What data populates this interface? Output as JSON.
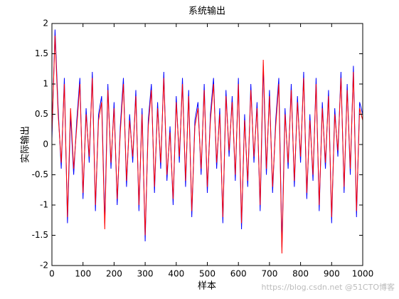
{
  "chart_data": {
    "type": "line",
    "title": "系统输出",
    "xlabel": "样本",
    "ylabel": "实际输出",
    "watermark": "https://blog.csdn.net @51CTO博客",
    "x": [
      0,
      10,
      20,
      30,
      40,
      50,
      60,
      70,
      80,
      90,
      100,
      110,
      120,
      130,
      140,
      150,
      160,
      170,
      180,
      190,
      200,
      210,
      220,
      230,
      240,
      250,
      260,
      270,
      280,
      290,
      300,
      310,
      320,
      330,
      340,
      350,
      360,
      370,
      380,
      390,
      400,
      410,
      420,
      430,
      440,
      450,
      460,
      470,
      480,
      490,
      500,
      510,
      520,
      530,
      540,
      550,
      560,
      570,
      580,
      590,
      600,
      610,
      620,
      630,
      640,
      650,
      660,
      670,
      680,
      690,
      700,
      710,
      720,
      730,
      740,
      750,
      760,
      770,
      780,
      790,
      800,
      810,
      820,
      830,
      840,
      850,
      860,
      870,
      880,
      890,
      900,
      910,
      920,
      930,
      940,
      950,
      960,
      970,
      980,
      990,
      1000
    ],
    "series": [
      {
        "color": "#0000ff",
        "values": [
          0.1,
          1.9,
          0.6,
          -0.4,
          1.1,
          -1.3,
          0.5,
          -0.5,
          0.4,
          1.1,
          -0.9,
          0.6,
          -0.3,
          1.2,
          -1.1,
          0.5,
          0.8,
          -1.3,
          1.0,
          -0.4,
          0.7,
          -1.0,
          0.3,
          1.1,
          -0.7,
          0.5,
          -0.3,
          0.9,
          -1.1,
          0.6,
          -1.6,
          0.4,
          1.0,
          -0.8,
          0.7,
          -0.4,
          1.2,
          -0.6,
          0.3,
          -1.0,
          0.8,
          -0.3,
          1.1,
          -0.7,
          0.9,
          -1.2,
          0.4,
          0.7,
          -0.5,
          1.0,
          -0.8,
          0.5,
          1.1,
          -0.4,
          0.6,
          -1.3,
          0.9,
          -0.2,
          0.8,
          -0.6,
          1.1,
          -1.4,
          0.5,
          -0.7,
          1.0,
          -0.3,
          0.7,
          -1.1,
          1.3,
          -0.5,
          0.9,
          -0.8,
          0.4,
          1.1,
          -1.7,
          0.6,
          -0.4,
          1.0,
          -0.7,
          0.8,
          -0.3,
          1.2,
          -0.9,
          0.5,
          -0.6,
          1.1,
          -1.1,
          0.7,
          -0.4,
          0.9,
          -1.3,
          0.6,
          -0.2,
          1.2,
          -0.8,
          1.0,
          -0.5,
          1.3,
          -1.2,
          0.7,
          0.5
        ]
      },
      {
        "color": "#ff0000",
        "values": [
          0.2,
          1.8,
          0.5,
          -0.3,
          1.0,
          -1.2,
          0.6,
          -0.4,
          0.3,
          1.0,
          -0.8,
          0.5,
          -0.2,
          1.1,
          -1.0,
          0.4,
          0.7,
          -1.4,
          0.9,
          -0.3,
          0.6,
          -0.9,
          0.2,
          1.0,
          -0.6,
          0.4,
          -0.2,
          0.8,
          -1.0,
          0.5,
          -1.5,
          0.3,
          0.9,
          -0.7,
          0.6,
          -0.3,
          1.1,
          -0.5,
          0.2,
          -0.9,
          0.7,
          -0.2,
          1.0,
          -0.6,
          0.8,
          -1.1,
          0.3,
          0.6,
          -0.4,
          0.9,
          -0.7,
          0.4,
          1.0,
          -0.3,
          0.5,
          -1.2,
          0.8,
          -0.1,
          0.7,
          -0.5,
          1.0,
          -1.3,
          0.4,
          -0.6,
          0.9,
          -0.2,
          0.6,
          -1.0,
          1.4,
          -0.4,
          0.8,
          -0.7,
          0.3,
          1.0,
          -1.8,
          0.5,
          -0.3,
          0.9,
          -0.6,
          0.7,
          -0.2,
          1.1,
          -0.8,
          0.4,
          -0.5,
          1.0,
          -1.0,
          0.6,
          -0.3,
          0.8,
          -1.2,
          0.5,
          -0.1,
          1.1,
          -0.7,
          0.9,
          -0.4,
          1.2,
          -1.1,
          0.6,
          0.4
        ]
      }
    ],
    "xlim": [
      0,
      1000
    ],
    "xticks": [
      0,
      100,
      200,
      300,
      400,
      500,
      600,
      700,
      800,
      900,
      1000
    ],
    "ylim": [
      -2,
      2
    ],
    "yticks": [
      -2,
      -1.5,
      -1,
      -0.5,
      0,
      0.5,
      1,
      1.5,
      2
    ],
    "grid": false
  }
}
